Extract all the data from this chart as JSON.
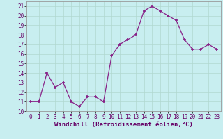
{
  "x": [
    0,
    1,
    2,
    3,
    4,
    5,
    6,
    7,
    8,
    9,
    10,
    11,
    12,
    13,
    14,
    15,
    16,
    17,
    18,
    19,
    20,
    21,
    22,
    23
  ],
  "y": [
    11,
    11,
    14,
    12.5,
    13,
    11,
    10.5,
    11.5,
    11.5,
    11,
    15.8,
    17,
    17.5,
    18,
    20.5,
    21,
    20.5,
    20,
    19.5,
    17.5,
    16.5,
    16.5,
    17,
    16.5
  ],
  "line_color": "#882288",
  "marker_color": "#882288",
  "bg_color": "#c8eef0",
  "grid_color": "#b0d8d0",
  "xlabel": "Windchill (Refroidissement éolien,°C)",
  "xlim": [
    -0.5,
    23.5
  ],
  "ylim": [
    10,
    21.5
  ],
  "yticks": [
    10,
    11,
    12,
    13,
    14,
    15,
    16,
    17,
    18,
    19,
    20,
    21
  ],
  "xticks": [
    0,
    1,
    2,
    3,
    4,
    5,
    6,
    7,
    8,
    9,
    10,
    11,
    12,
    13,
    14,
    15,
    16,
    17,
    18,
    19,
    20,
    21,
    22,
    23
  ],
  "tick_fontsize": 5.5,
  "xlabel_fontsize": 6.5
}
